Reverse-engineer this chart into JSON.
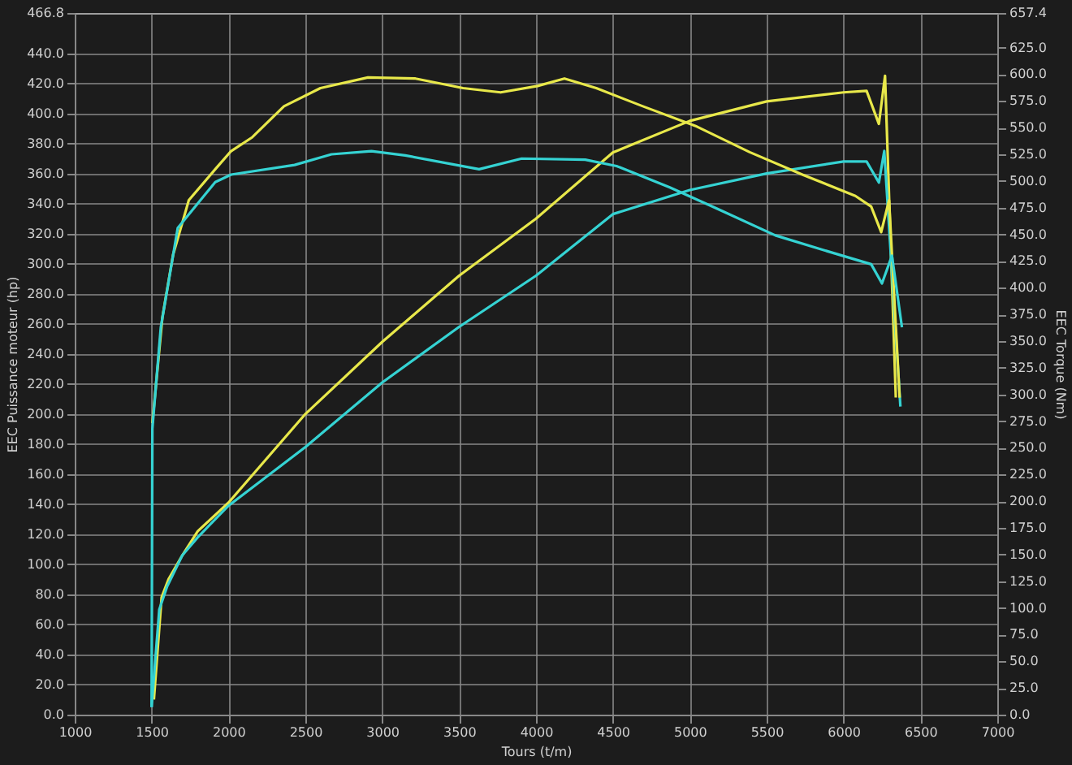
{
  "chart_data": {
    "type": "line",
    "xlabel": "Tours (t/m)",
    "ylabel": "EEC Puissance moteur (hp)",
    "y2label": "EEC Torque (Nm)",
    "xlim": [
      1000,
      7000
    ],
    "xticks": [
      1000,
      1500,
      2000,
      2500,
      3000,
      3500,
      4000,
      4500,
      5000,
      5500,
      6000,
      6500,
      7000
    ],
    "ylim": [
      0,
      466.8
    ],
    "yticks": [
      {
        "value": 0,
        "label": "0.0"
      },
      {
        "value": 20,
        "label": "20.0"
      },
      {
        "value": 40,
        "label": "40.0"
      },
      {
        "value": 60,
        "label": "60.0"
      },
      {
        "value": 80,
        "label": "80.0"
      },
      {
        "value": 100,
        "label": "100.0"
      },
      {
        "value": 120,
        "label": "120.0"
      },
      {
        "value": 140,
        "label": "140.0"
      },
      {
        "value": 160,
        "label": "160.0"
      },
      {
        "value": 180,
        "label": "180.0"
      },
      {
        "value": 200,
        "label": "200.0"
      },
      {
        "value": 220,
        "label": "220.0"
      },
      {
        "value": 240,
        "label": "240.0"
      },
      {
        "value": 260,
        "label": "260.0"
      },
      {
        "value": 280,
        "label": "280.0"
      },
      {
        "value": 300,
        "label": "300.0"
      },
      {
        "value": 320,
        "label": "320.0"
      },
      {
        "value": 340,
        "label": "340.0"
      },
      {
        "value": 360,
        "label": "360.0"
      },
      {
        "value": 380,
        "label": "380.0"
      },
      {
        "value": 400,
        "label": "400.0"
      },
      {
        "value": 420,
        "label": "420.0"
      },
      {
        "value": 440,
        "label": "440.0"
      },
      {
        "value": 466.8,
        "label": "466.8"
      }
    ],
    "y2lim": [
      0,
      657.4
    ],
    "y2ticks": [
      {
        "value": 0,
        "label": "0.0"
      },
      {
        "value": 25,
        "label": "25.0"
      },
      {
        "value": 50,
        "label": "50.0"
      },
      {
        "value": 75,
        "label": "75.0"
      },
      {
        "value": 100,
        "label": "100.0"
      },
      {
        "value": 125,
        "label": "125.0"
      },
      {
        "value": 150,
        "label": "150.0"
      },
      {
        "value": 175,
        "label": "175.0"
      },
      {
        "value": 200,
        "label": "200.0"
      },
      {
        "value": 225,
        "label": "225.0"
      },
      {
        "value": 250,
        "label": "250.0"
      },
      {
        "value": 275,
        "label": "275.0"
      },
      {
        "value": 300,
        "label": "300.0"
      },
      {
        "value": 325,
        "label": "325.0"
      },
      {
        "value": 350,
        "label": "350.0"
      },
      {
        "value": 375,
        "label": "375.0"
      },
      {
        "value": 400,
        "label": "400.0"
      },
      {
        "value": 425,
        "label": "425.0"
      },
      {
        "value": 450,
        "label": "450.0"
      },
      {
        "value": 475,
        "label": "475.0"
      },
      {
        "value": 500,
        "label": "500.0"
      },
      {
        "value": 525,
        "label": "525.0"
      },
      {
        "value": 550,
        "label": "550.0"
      },
      {
        "value": 575,
        "label": "575.0"
      },
      {
        "value": 600,
        "label": "600.0"
      },
      {
        "value": 625,
        "label": "625.0"
      },
      {
        "value": 657.4,
        "label": "657.4"
      }
    ],
    "grid": true,
    "marker": "none",
    "line_style": "solid",
    "series": [
      {
        "color": "#e8e84a",
        "x": [
          1515,
          1565,
          1610,
          1700,
          1800,
          2000,
          2500,
          3000,
          3500,
          4000,
          4500,
          5000,
          5500,
          6000,
          6150,
          6230,
          6270,
          6340
        ],
        "values": [
          10,
          78,
          90,
          106,
          122,
          141,
          200,
          248,
          292,
          330,
          374,
          395,
          408,
          414,
          415,
          393,
          425,
          211
        ]
      },
      {
        "color": "#35d3d3",
        "x": [
          1500,
          1550,
          1600,
          1700,
          1800,
          2000,
          2500,
          3000,
          3500,
          4000,
          4500,
          5000,
          5500,
          6000,
          6150,
          6230,
          6265,
          6370
        ],
        "values": [
          5,
          70,
          85,
          106,
          118,
          139,
          178,
          221,
          258,
          292,
          333,
          349,
          360,
          368,
          368,
          354,
          375,
          205
        ]
      },
      {
        "color": "#e8e84a",
        "axis": "y2",
        "x": [
          1505,
          1570,
          1640,
          1742,
          1914,
          2017,
          2155,
          2361,
          2598,
          2907,
          3216,
          3526,
          3770,
          4010,
          4185,
          4392,
          4695,
          5046,
          5390,
          5732,
          6077,
          6180,
          6245,
          6296,
          6365
        ],
        "values": [
          273,
          372,
          431,
          482,
          511,
          528,
          541,
          570,
          587,
          597,
          596,
          587,
          583,
          589,
          596,
          587,
          570,
          551,
          527,
          506,
          486,
          476,
          452,
          482,
          297
        ]
      },
      {
        "color": "#35d3d3",
        "axis": "y2",
        "x": [
          1500,
          1505,
          1560,
          1670,
          1914,
          2017,
          2430,
          2670,
          2930,
          3150,
          3630,
          3907,
          4320,
          4524,
          4870,
          5210,
          5557,
          5900,
          6180,
          6250,
          6315,
          6380
        ],
        "values": [
          7,
          268,
          363,
          456,
          499,
          506,
          515,
          525,
          528,
          524,
          511,
          521,
          520,
          514,
          494,
          472,
          449,
          434,
          422,
          404,
          430,
          363
        ]
      }
    ]
  }
}
